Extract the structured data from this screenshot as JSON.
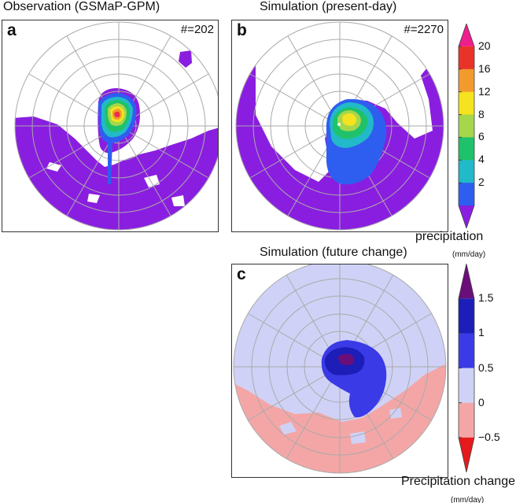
{
  "panels": [
    {
      "id": "a",
      "title": "Observation (GSMaP-GPM)",
      "count": "#=202"
    },
    {
      "id": "b",
      "title": "Simulation (present-day)",
      "count": "#=2270"
    },
    {
      "id": "c",
      "title": "Simulation (future change)",
      "count": ""
    }
  ],
  "colorbar_top": {
    "ticks": [
      "20",
      "16",
      "12",
      "8",
      "6",
      "4",
      "2"
    ],
    "title": "precipitation",
    "unit": "(mm/day)",
    "colors": [
      "#ee1e8c",
      "#e8332b",
      "#f29a2e",
      "#f4e31e",
      "#a6d64a",
      "#1fc26a",
      "#22b9c9",
      "#2e5ef0",
      "#8a1ee0"
    ]
  },
  "colorbar_bottom": {
    "ticks": [
      "1.5",
      "1",
      "0.5",
      "0",
      "−0.5"
    ],
    "title": "Precipitation change",
    "unit": "(mm/day)",
    "colors": [
      "#6a0e7a",
      "#1d1db8",
      "#3a3ae6",
      "#cfd2f6",
      "#f4a6a6",
      "#e41a1c"
    ]
  }
}
